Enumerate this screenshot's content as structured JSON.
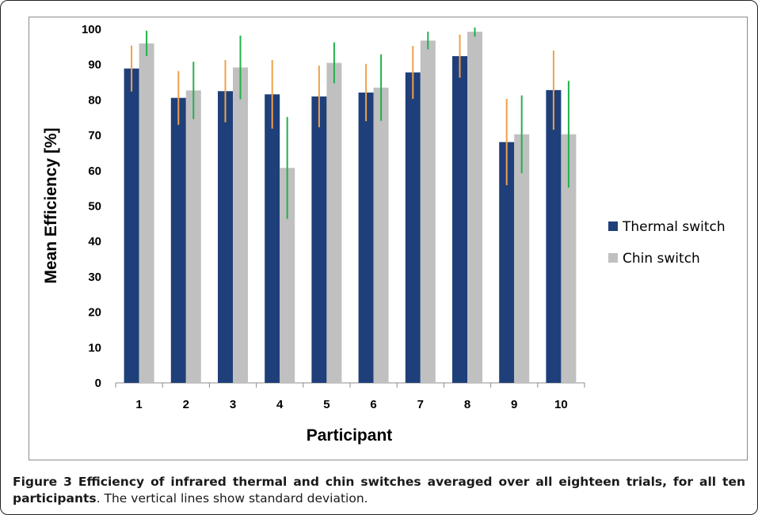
{
  "chart_data": {
    "type": "bar",
    "xlabel": "Participant",
    "ylabel": "Mean  Efficiency [%]",
    "ylim": [
      0,
      100
    ],
    "yticks": [
      0,
      10,
      20,
      30,
      40,
      50,
      60,
      70,
      80,
      90,
      100
    ],
    "grid": false,
    "legend_position": "right",
    "categories": [
      "1",
      "2",
      "3",
      "4",
      "5",
      "6",
      "7",
      "8",
      "9",
      "10"
    ],
    "series": [
      {
        "name": "Thermal switch",
        "color": "#1f3f7a",
        "error_color": "#f0a04b",
        "values": [
          88.9,
          80.6,
          82.5,
          81.6,
          81.0,
          82.1,
          87.8,
          92.4,
          68.1,
          82.8
        ],
        "std": [
          6.5,
          7.6,
          8.8,
          9.7,
          8.7,
          8.1,
          7.5,
          6.1,
          12.2,
          11.2
        ]
      },
      {
        "name": "Chin switch",
        "color": "#c0c0c0",
        "error_color": "#22b14c",
        "values": [
          96.0,
          82.7,
          89.2,
          60.8,
          90.5,
          83.5,
          96.8,
          99.3,
          70.3,
          70.3
        ],
        "std": [
          3.6,
          8.1,
          9.0,
          14.4,
          5.8,
          9.4,
          2.5,
          1.4,
          11.0,
          15.1
        ]
      }
    ]
  },
  "caption": {
    "bold": "Figure 3 Efficiency of infrared thermal and chin switches averaged over all eighteen trials, for all ten participants",
    "rest": ". The vertical lines show standard deviation."
  }
}
